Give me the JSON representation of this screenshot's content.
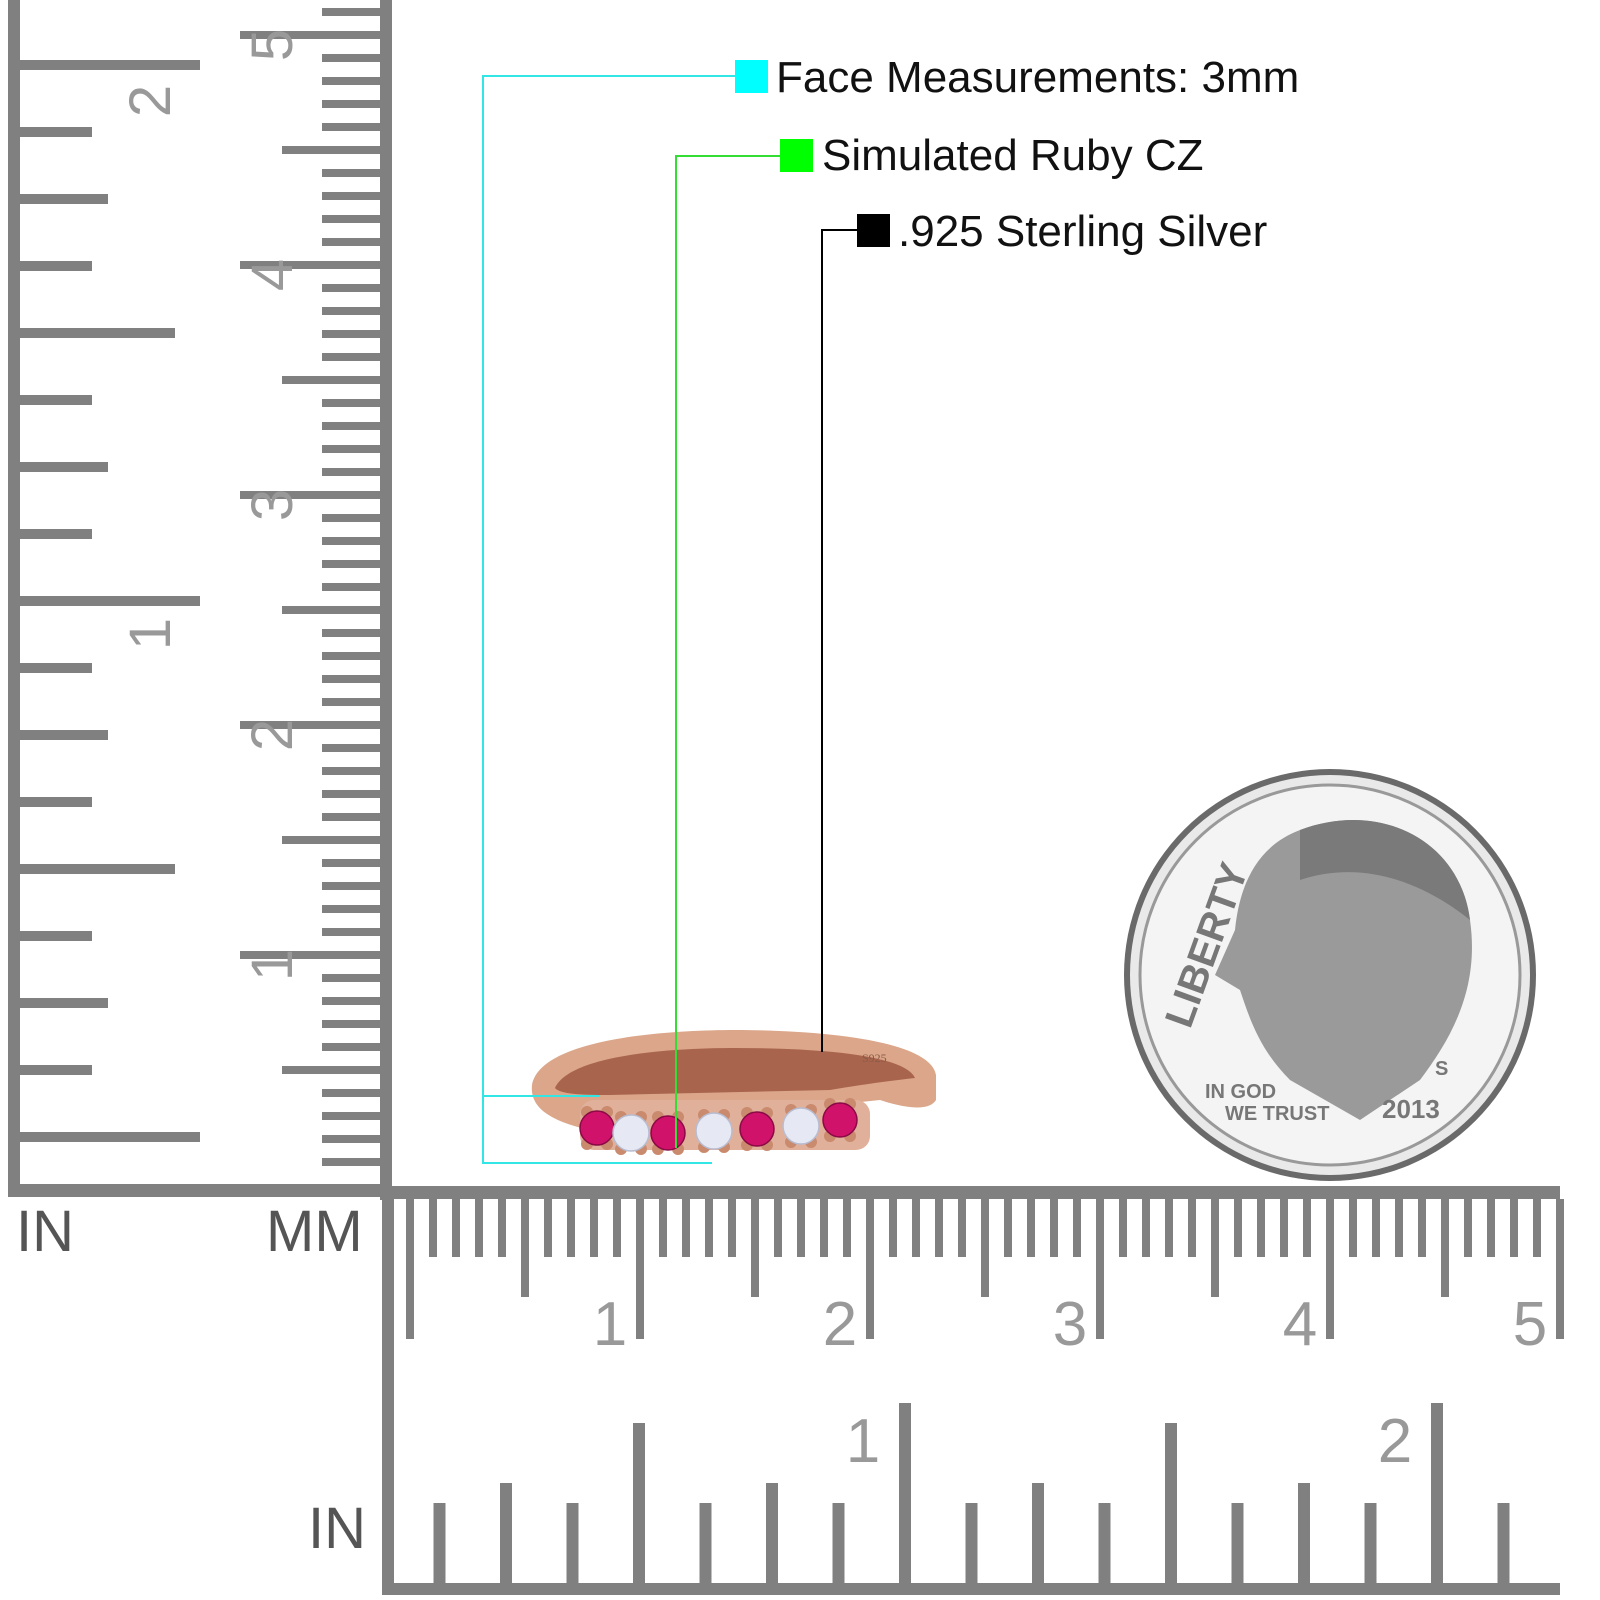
{
  "legend": [
    {
      "label": "Face Measurements: 3mm",
      "color": "#00ffff"
    },
    {
      "label": "Simulated Ruby CZ",
      "color": "#00ff00"
    },
    {
      "label": ".925 Sterling Silver",
      "color": "#000000"
    }
  ],
  "rulers": {
    "vertical_left_unit": "IN",
    "vertical_right_unit": "MM",
    "horizontal_bottom_unit": "IN",
    "vertical_mm_labels": [
      "1",
      "2",
      "3",
      "4",
      "5"
    ],
    "vertical_in_labels": [
      "1",
      "2"
    ],
    "horizontal_cm_labels": [
      "1",
      "2",
      "3",
      "4",
      "5"
    ],
    "horizontal_in_labels": [
      "1",
      "2"
    ],
    "color": "#808080"
  },
  "ring": {
    "stamp": "S925",
    "metal_color": "#dba68a",
    "ruby_color": "#d0126a",
    "cz_color": "#e6e8f4"
  },
  "coin": {
    "motto_top": "LIBERTY",
    "motto_bottom_1": "IN GOD",
    "motto_bottom_2": "WE TRUST",
    "year": "2013",
    "mint_mark": "S"
  }
}
